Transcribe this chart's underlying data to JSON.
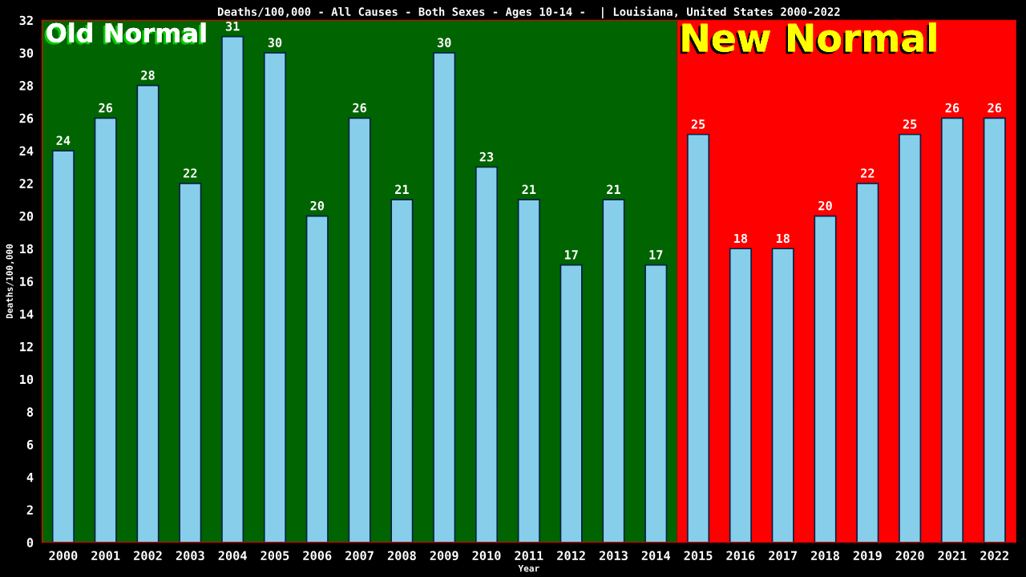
{
  "chart_data": {
    "type": "bar",
    "title": "Deaths/100,000 - All Causes - Both Sexes - Ages 10-14 -  | Louisiana, United States 2000-2022",
    "xlabel": "Year",
    "ylabel": "Deaths/100,000",
    "categories": [
      "2000",
      "2001",
      "2002",
      "2003",
      "2004",
      "2005",
      "2006",
      "2007",
      "2008",
      "2009",
      "2010",
      "2011",
      "2012",
      "2013",
      "2014",
      "2015",
      "2016",
      "2017",
      "2018",
      "2019",
      "2020",
      "2021",
      "2022"
    ],
    "values": [
      24,
      26,
      28,
      22,
      31,
      30,
      20,
      26,
      21,
      30,
      23,
      21,
      17,
      21,
      17,
      25,
      18,
      18,
      20,
      22,
      25,
      26,
      26
    ],
    "color": "#87ceeb",
    "ylim": [
      0,
      32
    ],
    "yticks": [
      0,
      2,
      4,
      6,
      8,
      10,
      12,
      14,
      16,
      18,
      20,
      22,
      24,
      26,
      28,
      30,
      32
    ],
    "data_labels": true,
    "grid": false,
    "legend": false,
    "bands": [
      {
        "axis": "x",
        "from": "2000",
        "to": "2014",
        "label": "Old Normal",
        "color": "#006400"
      },
      {
        "axis": "x",
        "from": "2015",
        "to": "2022",
        "label": "New Normal",
        "color": "#ff0000"
      }
    ]
  }
}
